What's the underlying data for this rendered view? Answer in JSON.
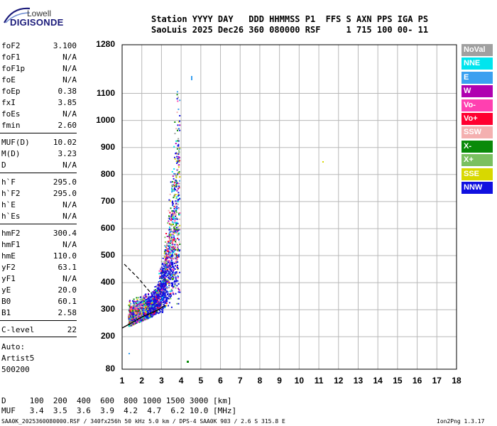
{
  "logo": {
    "top": "Lowell",
    "bottom": "DIGISONDE"
  },
  "header": {
    "line1": "Station YYYY DAY   DDD HHMMSS P1  FFS S AXN PPS IGA PS",
    "line2": "SaoLuis 2025 Dec26 360 080000 RSF     1 715 100 00- 11"
  },
  "params": [
    {
      "label": "foF2",
      "value": "3.100"
    },
    {
      "label": "foF1",
      "value": "N/A"
    },
    {
      "label": "foF1p",
      "value": "N/A"
    },
    {
      "label": "foE",
      "value": "N/A"
    },
    {
      "label": "foEp",
      "value": "0.38"
    },
    {
      "label": "fxI",
      "value": "3.85"
    },
    {
      "label": "foEs",
      "value": "N/A"
    },
    {
      "label": "fmin",
      "value": "2.60"
    },
    {
      "label": "MUF(D)",
      "value": "10.02"
    },
    {
      "label": "M(D)",
      "value": "3.23"
    },
    {
      "label": "D",
      "value": "N/A"
    },
    {
      "label": "h`F",
      "value": "295.0"
    },
    {
      "label": "h`F2",
      "value": "295.0"
    },
    {
      "label": "h`E",
      "value": "N/A"
    },
    {
      "label": "h`Es",
      "value": "N/A"
    },
    {
      "label": "hmF2",
      "value": "300.4"
    },
    {
      "label": "hmF1",
      "value": "N/A"
    },
    {
      "label": "hmE",
      "value": "110.0"
    },
    {
      "label": "yF2",
      "value": "63.1"
    },
    {
      "label": "yF1",
      "value": "N/A"
    },
    {
      "label": "yE",
      "value": "20.0"
    },
    {
      "label": "B0",
      "value": "60.1"
    },
    {
      "label": "B1",
      "value": "2.58"
    },
    {
      "label": "C-level",
      "value": "22"
    }
  ],
  "auto": {
    "line1": "Auto:",
    "line2": "Artist5",
    "line3": "500200"
  },
  "legend": [
    {
      "label": "NoVal",
      "color": "#a0a0a0"
    },
    {
      "label": "NNE",
      "color": "#00e5ee"
    },
    {
      "label": "E",
      "color": "#3aa0f0"
    },
    {
      "label": "W",
      "color": "#b000b0"
    },
    {
      "label": "Vo-",
      "color": "#ff40b0"
    },
    {
      "label": "Vo+",
      "color": "#ff0030"
    },
    {
      "label": "SSW",
      "color": "#f4b0b0"
    },
    {
      "label": "X-",
      "color": "#0a8a0a"
    },
    {
      "label": "X+",
      "color": "#7ac060"
    },
    {
      "label": "SSE",
      "color": "#d8d800"
    },
    {
      "label": "NNW",
      "color": "#1010e0"
    }
  ],
  "chart_data": {
    "type": "scatter",
    "x_ticks": [
      "1",
      "2",
      "3",
      "4",
      "5",
      "6",
      "7",
      "8",
      "9",
      "10",
      "11",
      "12",
      "13",
      "14",
      "15",
      "16",
      "17",
      "18"
    ],
    "y_ticks": [
      "80",
      "200",
      "300",
      "400",
      "500",
      "600",
      "700",
      "800",
      "900",
      "1000",
      "1100",
      "1280"
    ],
    "xlim": [
      1,
      18
    ],
    "ylim": [
      80,
      1280
    ],
    "grid": true
  },
  "muf_table": {
    "d_row": "D     100  200  400  600  800 1000 1500 3000 [km]",
    "muf_row": "MUF   3.4  3.5  3.6  3.9  4.2  4.7  6.2 10.0 [MHz]"
  },
  "footer": {
    "left": "SAA0K_2025360080000.RSF / 340fx256h 50 kHz 5.0 km / DPS-4 SAA0K 903 / 2.6 S 315.8 E",
    "right": "Ion2Png 1.3.17"
  }
}
